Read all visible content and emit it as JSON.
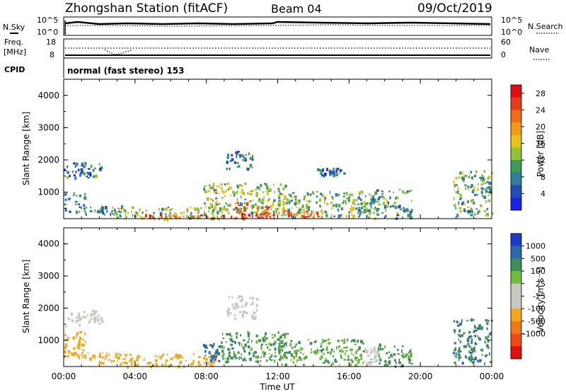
{
  "header": {
    "station": "Zhongshan Station (fitACF)",
    "beam": "Beam 04",
    "date": "09/Oct/2019"
  },
  "top_panels": {
    "nsky_label": "N.Sky",
    "nsearch_label": "N.Search",
    "freq_label_1": "Freq.",
    "freq_label_2": "[MHz]",
    "cpid_label": "CPID",
    "nave_label": "Nave",
    "noise_ticks": [
      "10^5",
      "10^0"
    ],
    "noise_ticks_right": [
      "10^5",
      "10^0"
    ],
    "freq_ticks": [
      "18",
      "8"
    ],
    "nave_ticks": [
      "60",
      "0"
    ],
    "cpid_text": "normal (fast stereo) 153"
  },
  "axes": {
    "ylabel": "Slant Range [km]",
    "xlabel": "Time UT",
    "y_ticks": [
      "1000",
      "2000",
      "3000",
      "4000"
    ],
    "x_ticks": [
      "00:00",
      "04:00",
      "08:00",
      "12:00",
      "16:00",
      "20:00",
      "00:00"
    ]
  },
  "colorbars": {
    "power": {
      "title": "Power [dB]",
      "ticks": [
        "4",
        "8",
        "12",
        "16",
        "20",
        "24",
        "28"
      ],
      "colors": [
        "#1a22e6",
        "#1f4fb4",
        "#2f7f9a",
        "#3c9a5c",
        "#8fc43a",
        "#e8c21c",
        "#f09a18",
        "#ef6a1a",
        "#e83a1c",
        "#e01010"
      ]
    },
    "velocity": {
      "title": "Velocity [m s⁻¹]",
      "ticks": [
        "1000",
        "500",
        "100",
        "25",
        "-25",
        "-100",
        "-500",
        "-1000"
      ],
      "colors": [
        "#1c3cc8",
        "#2b6aa8",
        "#3f8e5a",
        "#6fbe3c",
        "#c8c8c0",
        "#c8c8c0",
        "#f2a81a",
        "#f07a18",
        "#ef4a18",
        "#e01010"
      ]
    }
  },
  "chart_data": {
    "type": "heatmap",
    "x_range_hours": [
      0,
      24
    ],
    "y_range_km": [
      180,
      4500
    ],
    "panels": [
      {
        "name": "Power",
        "units": "dB",
        "range": [
          0,
          30
        ],
        "regions": [
          {
            "t": [
              0.0,
              2.1
            ],
            "r": [
              1480,
              1950
            ],
            "v": 7
          },
          {
            "t": [
              0.0,
              1.2
            ],
            "r": [
              420,
              1000
            ],
            "v": 9
          },
          {
            "t": [
              0.8,
              3.5
            ],
            "r": [
              320,
              620
            ],
            "v": 8
          },
          {
            "t": [
              3.0,
              9.0
            ],
            "r": [
              200,
              560
            ],
            "v": 13
          },
          {
            "t": [
              4.5,
              12.0
            ],
            "r": [
              200,
              330
            ],
            "v": 24
          },
          {
            "t": [
              9.6,
              10.4
            ],
            "r": [
              200,
              700
            ],
            "v": 27
          },
          {
            "t": [
              10.5,
              11.8
            ],
            "r": [
              250,
              600
            ],
            "v": 24
          },
          {
            "t": [
              7.8,
              12.5
            ],
            "r": [
              350,
              1300
            ],
            "v": 14
          },
          {
            "t": [
              9.1,
              10.8
            ],
            "r": [
              1750,
              2300
            ],
            "v": 8
          },
          {
            "t": [
              12.0,
              16.8
            ],
            "r": [
              250,
              1050
            ],
            "v": 12
          },
          {
            "t": [
              12.3,
              14.5
            ],
            "r": [
              250,
              450
            ],
            "v": 22
          },
          {
            "t": [
              14.2,
              15.8
            ],
            "r": [
              1540,
              1760
            ],
            "v": 6
          },
          {
            "t": [
              16.5,
              19.5
            ],
            "r": [
              200,
              1100
            ],
            "v": 10
          },
          {
            "t": [
              21.8,
              24.0
            ],
            "r": [
              300,
              1700
            ],
            "v": 11
          }
        ]
      },
      {
        "name": "Velocity",
        "units": "m/s",
        "range": [
          -1000,
          1000
        ],
        "regions": [
          {
            "t": [
              0.0,
              2.1
            ],
            "r": [
              1480,
              1950
            ],
            "v": 0
          },
          {
            "t": [
              0.0,
              1.2
            ],
            "r": [
              420,
              1300
            ],
            "v": -250
          },
          {
            "t": [
              0.8,
              3.5
            ],
            "r": [
              320,
              620
            ],
            "v": -200
          },
          {
            "t": [
              3.0,
              8.5
            ],
            "r": [
              200,
              600
            ],
            "v": -200
          },
          {
            "t": [
              7.8,
              8.8
            ],
            "r": [
              350,
              950
            ],
            "v": 600
          },
          {
            "t": [
              8.8,
              12.5
            ],
            "r": [
              350,
              1300
            ],
            "v": 150
          },
          {
            "t": [
              9.1,
              10.8
            ],
            "r": [
              1700,
              2400
            ],
            "v": 0
          },
          {
            "t": [
              12.0,
              16.8
            ],
            "r": [
              250,
              1050
            ],
            "v": 100
          },
          {
            "t": [
              16.8,
              17.6
            ],
            "r": [
              300,
              800
            ],
            "v": 0
          },
          {
            "t": [
              17.6,
              19.5
            ],
            "r": [
              200,
              900
            ],
            "v": 150
          },
          {
            "t": [
              21.8,
              24.0
            ],
            "r": [
              300,
              1700
            ],
            "v": 400
          }
        ]
      }
    ]
  }
}
